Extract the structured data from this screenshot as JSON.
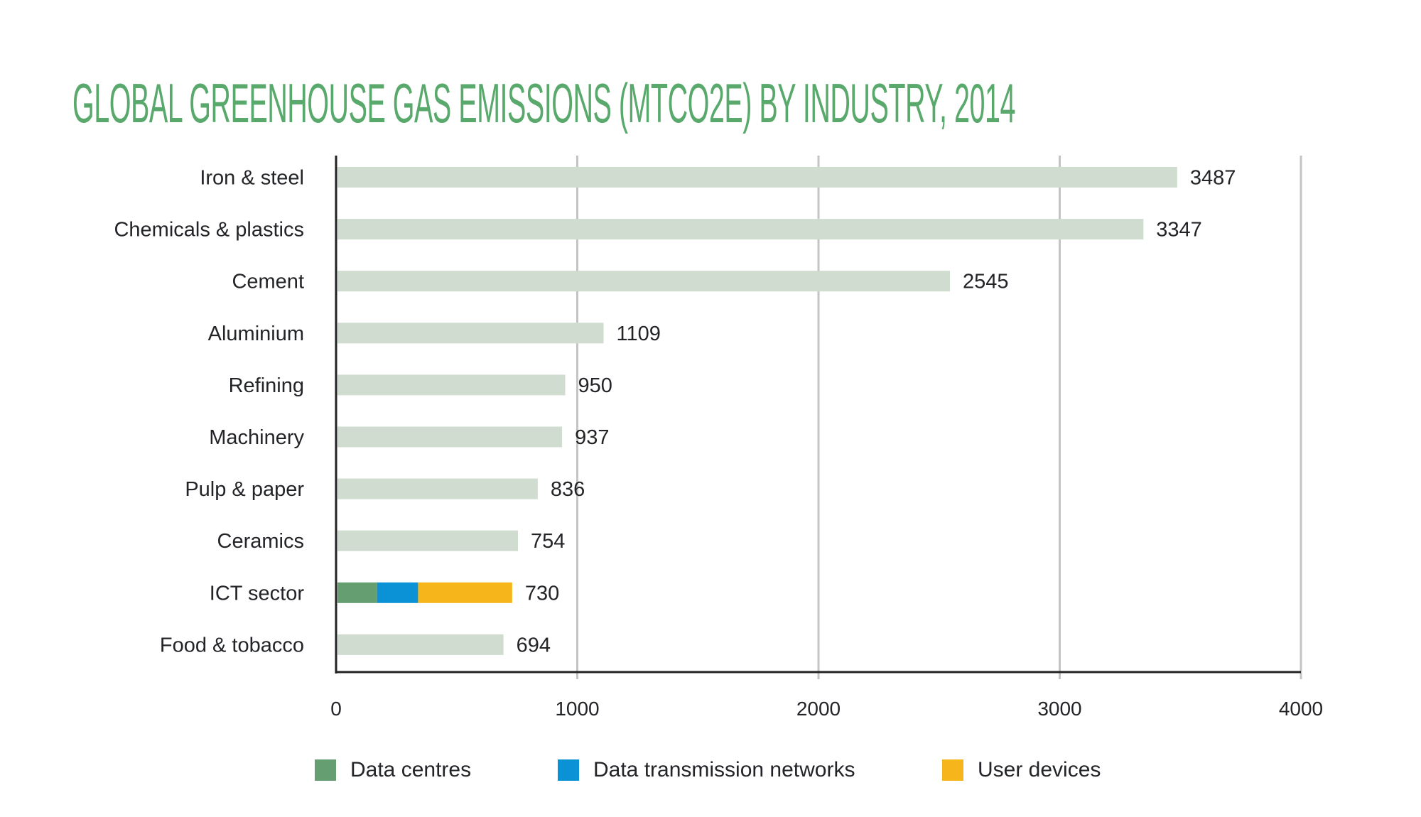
{
  "colors": {
    "title": "#5aa96c",
    "bar": "#cfdccf",
    "grid": "#c4c4c4",
    "axis": "#222222",
    "text": "#222428",
    "data_centres": "#649e71",
    "data_transmission_networks": "#0b92d6",
    "user_devices": "#f6b51b"
  },
  "chart_data": {
    "type": "bar",
    "orientation": "horizontal",
    "title": "GLOBAL GREENHOUSE GAS EMISSIONS (MTCO2E) BY INDUSTRY, 2014",
    "xlabel": "",
    "ylabel": "",
    "xlim": [
      0,
      4000
    ],
    "xticks": [
      "0",
      "1000",
      "2000",
      "3000",
      "4000"
    ],
    "grid": true,
    "categories": [
      "Iron & steel",
      "Chemicals & plastics",
      "Cement",
      "Aluminium",
      "Refining",
      "Machinery",
      "Pulp & paper",
      "Ceramics",
      "ICT sector",
      "Food & tobacco"
    ],
    "values": [
      3487,
      3347,
      2545,
      1109,
      950,
      937,
      836,
      754,
      730,
      694
    ],
    "value_labels": [
      "3487",
      "3347",
      "2545",
      "1109",
      "950",
      "937",
      "836",
      "754",
      "730",
      "694"
    ],
    "stacked_breakdown": {
      "category": "ICT sector",
      "series": [
        {
          "name": "Data centres",
          "value": 170
        },
        {
          "name": "Data transmission networks",
          "value": 170
        },
        {
          "name": "User devices",
          "value": 390
        }
      ]
    },
    "legend": {
      "position": "bottom",
      "entries": [
        "Data centres",
        "Data transmission networks",
        "User devices"
      ]
    }
  }
}
